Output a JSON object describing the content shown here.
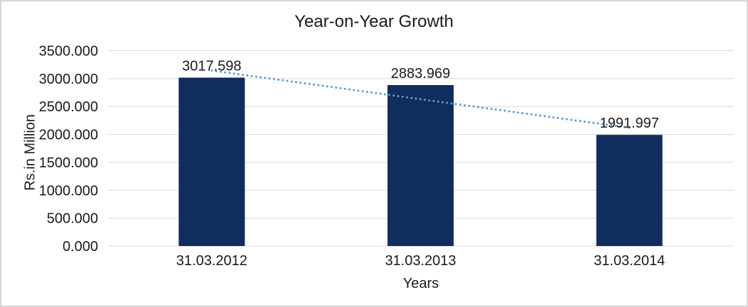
{
  "chart_data": {
    "type": "bar",
    "title": "Year-on-Year Growth",
    "xlabel": "Years",
    "ylabel": "Rs.in Million",
    "categories": [
      "31.03.2012",
      "31.03.2013",
      "31.03.2014"
    ],
    "values": [
      3017.598,
      2883.969,
      1991.997
    ],
    "data_labels": [
      "3017.598",
      "2883.969",
      "1991.997"
    ],
    "ylim": [
      0,
      3500
    ],
    "ytick_step": 500,
    "ytick_labels": [
      "0.000",
      "500.000",
      "1000.000",
      "1500.000",
      "2000.000",
      "2500.000",
      "3000.000",
      "3500.000"
    ],
    "grid": true,
    "legend": "none",
    "trendline": {
      "type": "linear",
      "style": "dotted"
    },
    "colors": {
      "bar": "#0f2d5d",
      "trendline": "#5b9bd5",
      "gridline": "#d9d9d9",
      "text": "#1a1a1a",
      "background": "#ffffff",
      "border": "#d6d6d6"
    }
  }
}
